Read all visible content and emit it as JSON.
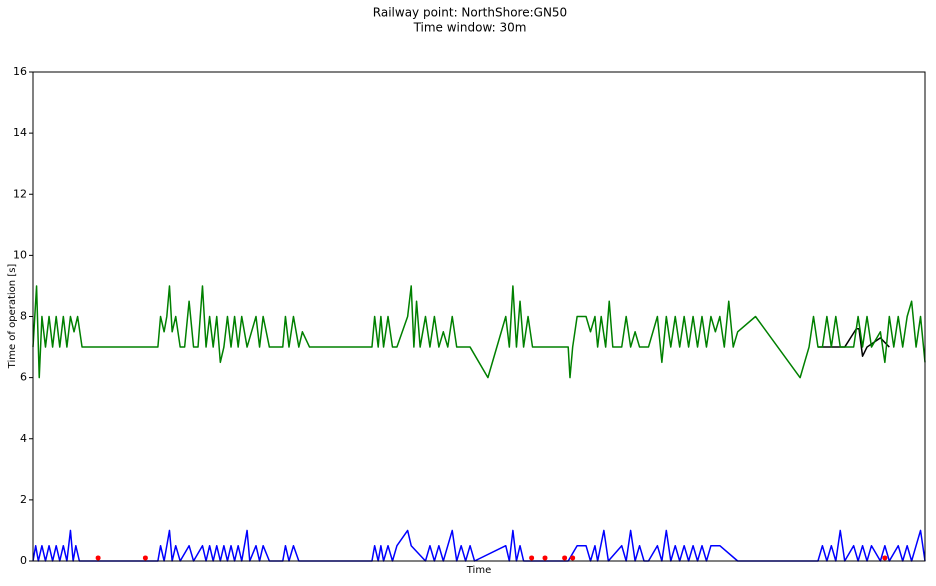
{
  "chart_data": {
    "type": "line",
    "title": "Railway point: NorthShore:GN50",
    "subtitle": "Time window: 30m",
    "x_label": "Time",
    "y_label": "Time of operation [s]",
    "xlim": [
      0,
      100
    ],
    "ylim": [
      0,
      16
    ],
    "yticks": [
      0,
      2,
      4,
      6,
      8,
      10,
      12,
      14,
      16
    ],
    "series": [
      {
        "color": "#000000",
        "mode": "line",
        "x": [
          88,
          91,
          92.3,
          92.6,
          93,
          93.5,
          95,
          96
        ],
        "values": [
          7,
          7,
          7.6,
          7.6,
          6.7,
          7,
          7.3,
          7
        ]
      },
      {
        "color": "#008000",
        "mode": "line",
        "x": [
          0,
          0.4,
          0.7,
          1,
          1.4,
          1.8,
          2.2,
          2.6,
          3,
          3.4,
          3.8,
          4.2,
          4.6,
          5,
          5.5,
          7,
          14,
          14.3,
          14.7,
          15,
          15.3,
          15.6,
          16,
          16.5,
          17,
          17.5,
          18,
          18.5,
          19,
          19.4,
          19.8,
          20.2,
          20.6,
          21,
          21.4,
          21.8,
          22.2,
          22.6,
          23,
          23.4,
          24,
          25,
          25.4,
          25.8,
          26.5,
          28,
          28.3,
          28.7,
          29.2,
          29.8,
          30.2,
          31,
          38,
          38.3,
          38.7,
          39,
          39.3,
          39.8,
          40.3,
          40.8,
          42,
          42.4,
          42.7,
          43,
          43.4,
          44,
          44.5,
          45,
          45.5,
          46,
          46.5,
          47,
          47.5,
          48,
          49,
          51,
          53,
          53.4,
          53.8,
          54.2,
          54.6,
          55,
          55.5,
          56,
          58,
          60,
          60.2,
          60.5,
          61,
          62,
          62.5,
          63,
          63.3,
          63.7,
          64.2,
          64.6,
          65,
          66,
          66.5,
          67,
          67.5,
          68,
          69,
          70,
          70.5,
          71,
          71.5,
          72,
          72.5,
          73,
          73.5,
          74,
          74.5,
          75,
          75.5,
          76,
          76.5,
          77,
          77.5,
          78,
          78.5,
          79,
          81,
          86,
          87,
          87.5,
          88,
          88.5,
          89,
          89.5,
          90,
          90.5,
          91,
          92,
          92.5,
          93,
          93.5,
          94,
          95,
          95.5,
          96,
          96.5,
          97,
          97.5,
          98,
          98.5,
          99,
          99.5,
          100
        ],
        "values": [
          7,
          9,
          6,
          8,
          7,
          8,
          7,
          8,
          7,
          8,
          7,
          8,
          7.5,
          8,
          7,
          7,
          7,
          8,
          7.5,
          8,
          9,
          7.5,
          8,
          7,
          7,
          8.5,
          7,
          7,
          9,
          7,
          8,
          7,
          8,
          6.5,
          7,
          8,
          7,
          8,
          7,
          8,
          7,
          8,
          7,
          8,
          7,
          7,
          8,
          7,
          8,
          7,
          7.5,
          7,
          7,
          8,
          7,
          8,
          7,
          8,
          7,
          7,
          8,
          9,
          7,
          8.5,
          7,
          8,
          7,
          8,
          7,
          7.5,
          7,
          8,
          7,
          7,
          7,
          6,
          8,
          7,
          9,
          7,
          8.5,
          7,
          8,
          7,
          7,
          7,
          6,
          7,
          8,
          8,
          7.5,
          8,
          7,
          8,
          7,
          8.5,
          7,
          7,
          8,
          7,
          7.5,
          7,
          7,
          8,
          6.5,
          8,
          7,
          8,
          7,
          8,
          7,
          8,
          7,
          8,
          7,
          8,
          7.5,
          8,
          7,
          8.5,
          7,
          7.5,
          8,
          6,
          7,
          8,
          7,
          7,
          8,
          7,
          8,
          7,
          7,
          7,
          8,
          7,
          8,
          7,
          7.5,
          6.5,
          8,
          7,
          8,
          7,
          8,
          8.5,
          7,
          8,
          6.5
        ]
      },
      {
        "color": "#0000ff",
        "mode": "line",
        "x": [
          0,
          0.3,
          0.6,
          1,
          1.4,
          1.8,
          2.2,
          2.6,
          3,
          3.4,
          3.8,
          4.2,
          4.5,
          4.8,
          5.2,
          14,
          14.3,
          14.7,
          15,
          15.3,
          15.6,
          16,
          16.5,
          17.5,
          18,
          19,
          19.4,
          19.8,
          20.2,
          20.6,
          21,
          21.4,
          21.8,
          22.2,
          22.6,
          23,
          23.4,
          24,
          24.3,
          25,
          25.4,
          25.8,
          26.5,
          28,
          28.3,
          28.7,
          29.2,
          29.8,
          38,
          38.3,
          38.7,
          39,
          39.3,
          39.8,
          40.3,
          40.8,
          42,
          42.4,
          44,
          44.5,
          45,
          45.5,
          46,
          46.5,
          47,
          47.5,
          48,
          48.5,
          49,
          49.5,
          53,
          53.4,
          53.8,
          54.2,
          54.6,
          55,
          60,
          61,
          62,
          62.5,
          63,
          63.3,
          64,
          64.5,
          66,
          66.5,
          67,
          67.5,
          68,
          68.5,
          69,
          70,
          70.5,
          71,
          71.5,
          72,
          72.5,
          73,
          73.5,
          74,
          74.5,
          75,
          75.5,
          76,
          77,
          79,
          88,
          88.5,
          89,
          89.5,
          90,
          90.5,
          91,
          92,
          92.5,
          93,
          93.5,
          94,
          95,
          95.5,
          96,
          97,
          97.5,
          98,
          98.5,
          99,
          99.5,
          100
        ],
        "values": [
          0,
          0.5,
          0,
          0.5,
          0,
          0.5,
          0,
          0.5,
          0,
          0.5,
          0,
          1,
          0,
          0.5,
          0,
          0,
          0.5,
          0,
          0.5,
          1,
          0,
          0.5,
          0,
          0.5,
          0,
          0.5,
          0,
          0.5,
          0,
          0.5,
          0,
          0.5,
          0,
          0.5,
          0,
          0.5,
          0,
          1,
          0,
          0.5,
          0,
          0.5,
          0,
          0,
          0.5,
          0,
          0.5,
          0,
          0,
          0.5,
          0,
          0.5,
          0,
          0.5,
          0,
          0.5,
          1,
          0.5,
          0,
          0.5,
          0,
          0.5,
          0,
          0.5,
          1,
          0,
          0.5,
          0,
          0.5,
          0,
          0.5,
          0,
          1,
          0,
          0.5,
          0,
          0,
          0.5,
          0.5,
          0,
          0.5,
          0,
          1,
          0,
          0.5,
          0,
          1,
          0,
          0.5,
          0,
          0,
          0.5,
          0,
          1,
          0,
          0.5,
          0,
          0.5,
          0,
          0.5,
          0,
          0.5,
          0,
          0.5,
          0.5,
          0,
          0,
          0.5,
          0,
          0.5,
          0,
          1,
          0,
          0.5,
          0,
          0.5,
          0,
          0.5,
          0,
          0.5,
          0,
          0.5,
          0,
          0.5,
          0,
          0.5,
          1,
          0
        ]
      },
      {
        "color": "#ff0000",
        "mode": "markers",
        "x": [
          7.3,
          12.6,
          55.9,
          57.4,
          59.6,
          60.5,
          95.5
        ],
        "values": [
          0.1,
          0.1,
          0.1,
          0.1,
          0.1,
          0.1,
          0.1
        ]
      }
    ]
  }
}
